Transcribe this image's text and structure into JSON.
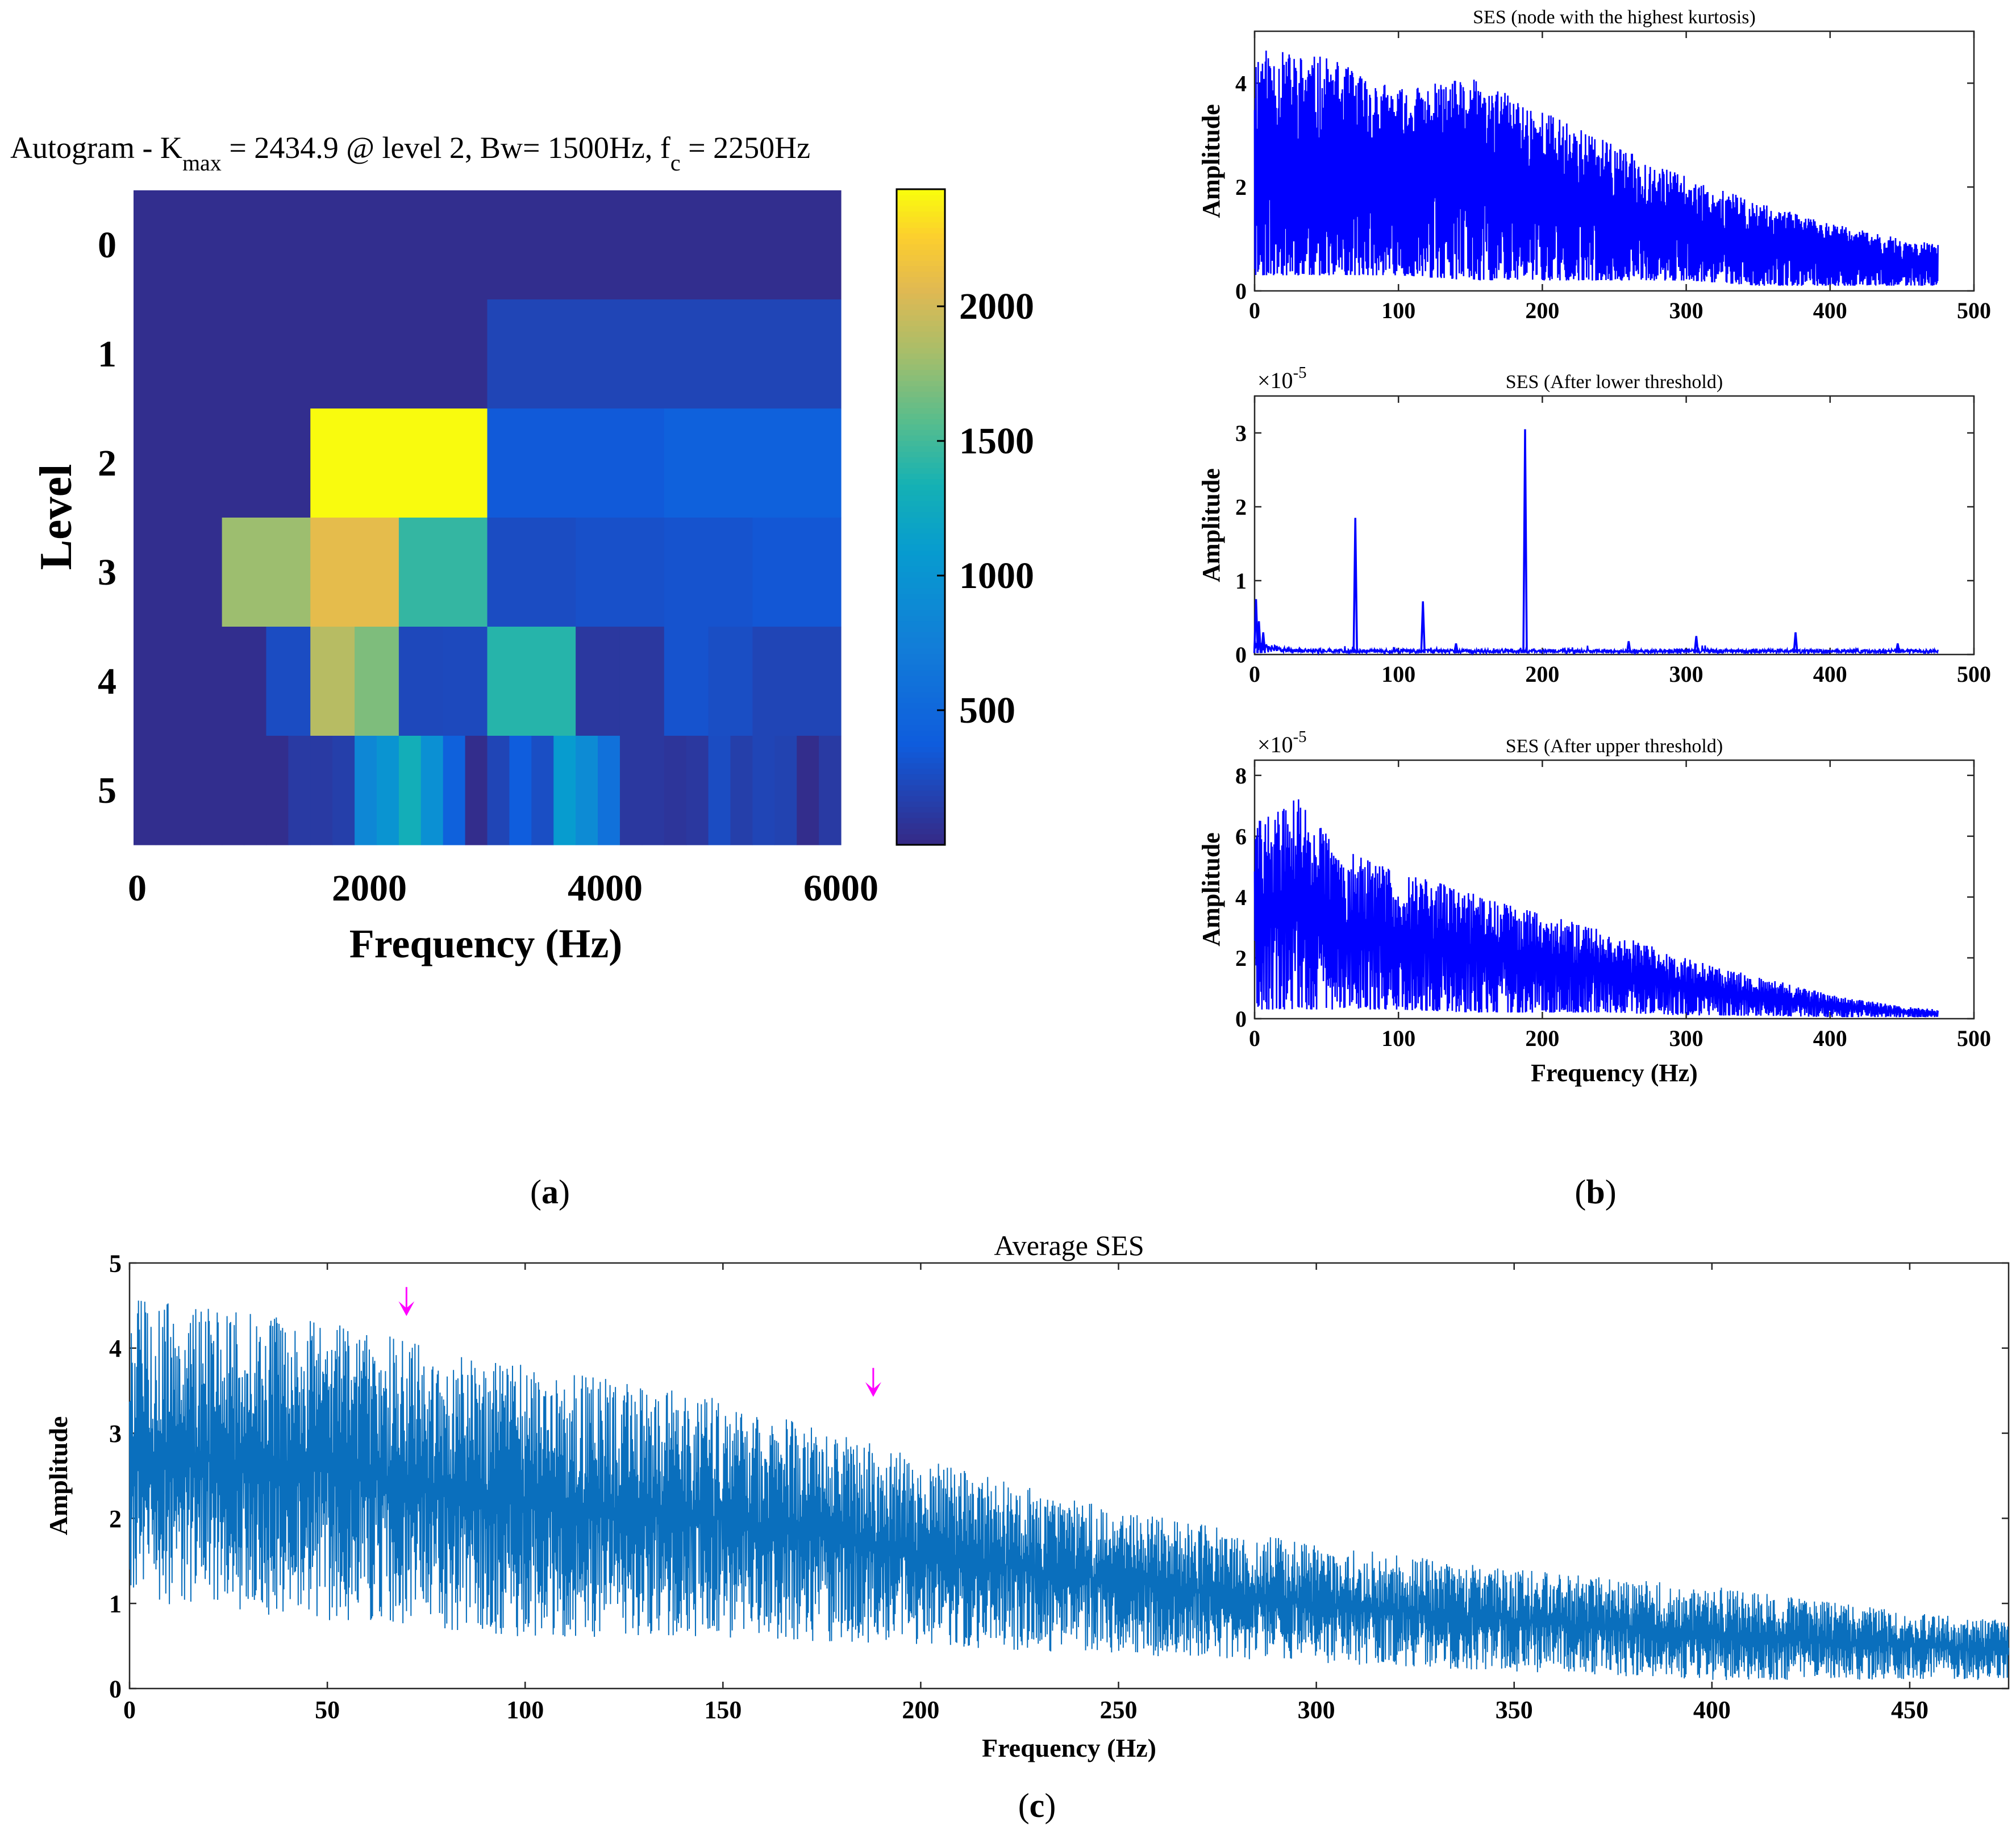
{
  "panel_labels": {
    "a": "(a)",
    "b": "(b)",
    "c": "(c)"
  },
  "colors": {
    "ses_blue": "#0000ff",
    "avg_blue": "#0a6fbd",
    "arrow": "#ff00ff",
    "axis": "#000000"
  },
  "chart_data": [
    {
      "id": "autogram",
      "type": "heatmap",
      "title": "Autogram - K",
      "title_sub": "max",
      "title_rest": " = 2434.9 @ level 2, Bw= 1500Hz, f",
      "title_sub2": "c",
      "title_end": " = 2250Hz",
      "xlabel": "Frequency (Hz)",
      "ylabel": "Level",
      "xlim": [
        0,
        6000
      ],
      "xticks": [
        "0",
        "2000",
        "4000",
        "6000"
      ],
      "xtick_values": [
        0,
        2000,
        4000,
        6000
      ],
      "levels": [
        "0",
        "1",
        "2",
        "3",
        "4",
        "5"
      ],
      "colorbar": {
        "range": [
          0,
          2434.9
        ],
        "ticks": [
          "500",
          "1000",
          "1500",
          "2000"
        ],
        "tick_values": [
          500,
          1000,
          1500,
          2000
        ]
      },
      "rows": [
        {
          "level": 0,
          "values": [
            30
          ]
        },
        {
          "level": 1,
          "values": [
            30,
            200
          ]
        },
        {
          "level": 2,
          "values": [
            30,
            2434.9,
            350,
            420
          ]
        },
        {
          "level": 3,
          "values": [
            30,
            1800,
            2100,
            1450,
            250,
            280,
            300,
            330
          ]
        },
        {
          "level": 4,
          "values": [
            30,
            30,
            30,
            250,
            1900,
            1700,
            220,
            230,
            1400,
            1400,
            100,
            100,
            300,
            260,
            200,
            200
          ]
        },
        {
          "level": 5,
          "values": [
            30,
            30,
            30,
            30,
            30,
            30,
            30,
            120,
            120,
            150,
            850,
            1000,
            1300,
            950,
            420,
            20,
            200,
            380,
            260,
            1100,
            900,
            600,
            100,
            100,
            80,
            100,
            250,
            150,
            200,
            180,
            20,
            120
          ]
        }
      ]
    },
    {
      "id": "ses-kurtosis",
      "type": "line",
      "title": "SES (node with the highest kurtosis)",
      "xlabel": "",
      "ylabel": "Amplitude",
      "xlim": [
        0,
        500
      ],
      "ylim": [
        0,
        5
      ],
      "xticks": [
        "0",
        "100",
        "200",
        "300",
        "400",
        "500"
      ],
      "yticks": [
        "0",
        "2",
        "4"
      ],
      "xtick_values": [
        0,
        100,
        200,
        300,
        400,
        500
      ],
      "ytick_values": [
        0,
        2,
        4
      ],
      "series": [
        {
          "name": "SES",
          "envelope_x": [
            0,
            50,
            100,
            150,
            200,
            250,
            300,
            350,
            400,
            450,
            475
          ],
          "envelope_top": [
            4.7,
            4.5,
            3.9,
            4.1,
            3.5,
            2.8,
            2.2,
            1.7,
            1.3,
            1.0,
            0.9
          ],
          "envelope_bottom": [
            0.3,
            0.3,
            0.3,
            0.2,
            0.2,
            0.2,
            0.2,
            0.1,
            0.1,
            0.1,
            0.1
          ]
        }
      ]
    },
    {
      "id": "ses-lower",
      "type": "line",
      "title": "SES (After lower threshold)",
      "exponent": "×10",
      "exponent_power": "-5",
      "xlabel": "",
      "ylabel": "Amplitude",
      "xlim": [
        0,
        500
      ],
      "ylim": [
        0,
        3.5
      ],
      "xticks": [
        "0",
        "100",
        "200",
        "300",
        "400",
        "500"
      ],
      "yticks": [
        "0",
        "1",
        "2",
        "3"
      ],
      "xtick_values": [
        0,
        100,
        200,
        300,
        400,
        500
      ],
      "ytick_values": [
        0,
        1,
        2,
        3
      ],
      "series": [
        {
          "name": "SES lower",
          "peaks": [
            [
              1,
              0.75
            ],
            [
              3,
              0.45
            ],
            [
              6,
              0.3
            ],
            [
              70,
              1.85
            ],
            [
              117,
              0.72
            ],
            [
              140,
              0.15
            ],
            [
              188,
              3.05
            ],
            [
              260,
              0.18
            ],
            [
              307,
              0.25
            ],
            [
              376,
              0.3
            ],
            [
              447,
              0.15
            ]
          ]
        }
      ]
    },
    {
      "id": "ses-upper",
      "type": "line",
      "title": "SES (After upper threshold)",
      "exponent": "×10",
      "exponent_power": "-5",
      "xlabel": "Frequency (Hz)",
      "ylabel": "Amplitude",
      "xlim": [
        0,
        500
      ],
      "ylim": [
        0,
        8.5
      ],
      "xticks": [
        "0",
        "100",
        "200",
        "300",
        "400",
        "500"
      ],
      "yticks": [
        "0",
        "2",
        "4",
        "6",
        "8"
      ],
      "xtick_values": [
        0,
        100,
        200,
        300,
        400,
        500
      ],
      "ytick_values": [
        0,
        2,
        4,
        6,
        8
      ],
      "series": [
        {
          "name": "SES upper",
          "envelope_x": [
            0,
            30,
            60,
            100,
            150,
            200,
            250,
            300,
            350,
            400,
            450,
            475
          ],
          "envelope_top": [
            6.5,
            7.3,
            5.6,
            4.9,
            4.2,
            3.5,
            2.8,
            2.0,
            1.4,
            0.8,
            0.4,
            0.3
          ],
          "envelope_bottom": [
            0.3,
            0.3,
            0.3,
            0.3,
            0.2,
            0.2,
            0.2,
            0.1,
            0.1,
            0.05,
            0.05,
            0.05
          ]
        }
      ]
    },
    {
      "id": "average-ses",
      "type": "line",
      "title": "Average SES",
      "xlabel": "Frequency (Hz)",
      "ylabel": "Amplitude",
      "xlim": [
        0,
        475
      ],
      "ylim": [
        0,
        5
      ],
      "xticks": [
        "0",
        "50",
        "100",
        "150",
        "200",
        "250",
        "300",
        "350",
        "400",
        "450"
      ],
      "yticks": [
        "0",
        "1",
        "2",
        "3",
        "4",
        "5"
      ],
      "xtick_values": [
        0,
        50,
        100,
        150,
        200,
        250,
        300,
        350,
        400,
        450
      ],
      "ytick_values": [
        0,
        1,
        2,
        3,
        4,
        5
      ],
      "series": [
        {
          "name": "Average SES",
          "envelope_x": [
            0,
            50,
            100,
            150,
            200,
            250,
            300,
            350,
            400,
            450,
            475
          ],
          "envelope_top": [
            4.6,
            4.3,
            3.8,
            3.4,
            2.7,
            2.1,
            1.7,
            1.4,
            1.2,
            0.9,
            0.8
          ],
          "envelope_bottom": [
            1.0,
            0.8,
            0.6,
            0.6,
            0.5,
            0.4,
            0.3,
            0.2,
            0.1,
            0.1,
            0.1
          ]
        }
      ],
      "arrows": [
        {
          "x": 70,
          "y": 4.35
        },
        {
          "x": 188,
          "y": 3.4
        }
      ]
    }
  ]
}
